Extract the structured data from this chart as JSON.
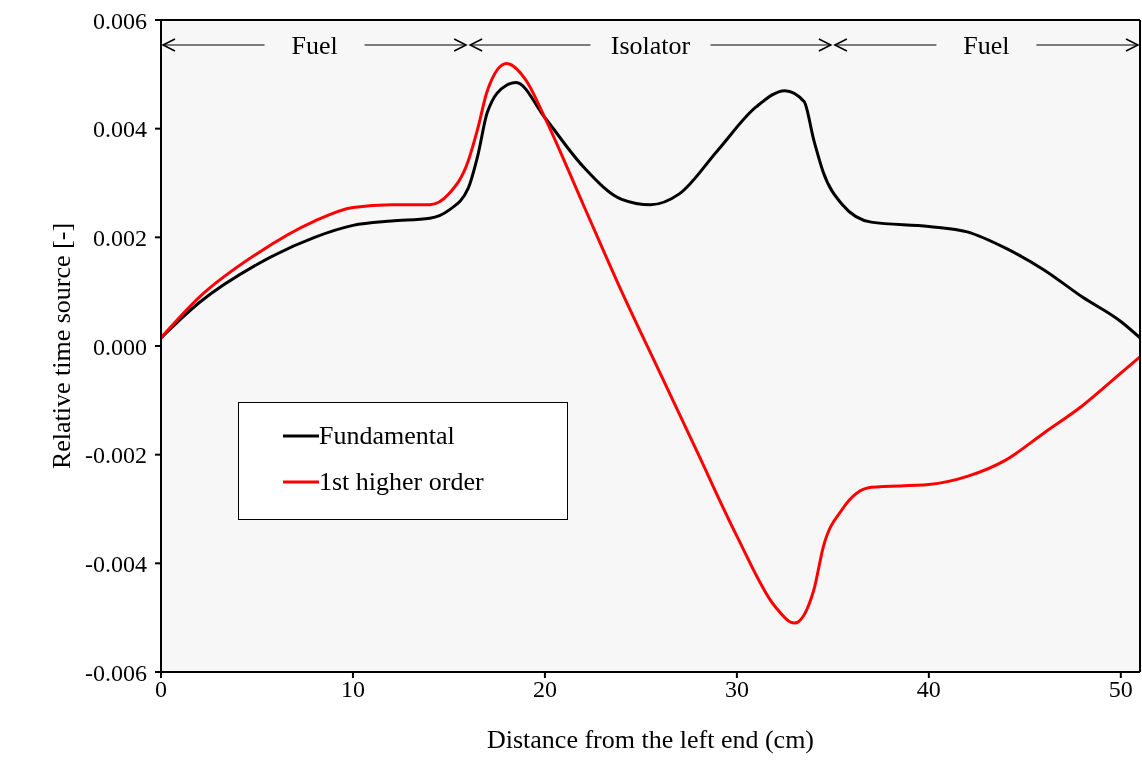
{
  "chart_data": {
    "type": "line",
    "xlabel": "Distance from the left end (cm)",
    "ylabel": "Relative time source [-]",
    "xlim": [
      0,
      51
    ],
    "xticks": [
      0,
      10,
      20,
      30,
      40,
      50
    ],
    "ylim": [
      -0.006,
      0.006
    ],
    "yticks": [
      -0.006,
      -0.004,
      -0.002,
      {
        "value": 0,
        "label": "0.000"
      },
      0.002,
      0.004,
      0.006
    ],
    "grid": false,
    "legend": "left",
    "marker": "none",
    "line_style": "solid",
    "bands": [
      {
        "axis": "x",
        "from": 0,
        "to": 16,
        "label": "Fuel",
        "color": "#f7f7f7"
      },
      {
        "axis": "x",
        "from": 16,
        "to": 35,
        "label": "Isolator",
        "color": "#f7f7f7"
      },
      {
        "axis": "x",
        "from": 35,
        "to": 51,
        "label": "Fuel",
        "color": "#f7f7f7"
      }
    ],
    "series": [
      {
        "name": "Fundamental",
        "color": "#000000",
        "x": [
          0,
          2,
          5,
          8,
          10,
          12,
          14,
          15,
          16,
          16.5,
          17,
          18,
          18.5,
          20,
          22,
          24,
          25.5,
          27,
          29,
          31,
          32.5,
          33.5,
          34,
          34.5,
          35.5,
          37,
          40,
          42,
          44,
          46,
          48,
          50,
          51
        ],
        "values": [
          0.00015,
          0.0008,
          0.0015,
          0.002,
          0.00222,
          0.0023,
          0.00235,
          0.0025,
          0.0029,
          0.0035,
          0.0043,
          0.0048,
          0.00485,
          0.0042,
          0.0033,
          0.0027,
          0.0026,
          0.0028,
          0.0036,
          0.0044,
          0.0047,
          0.0045,
          0.0038,
          0.0032,
          0.0026,
          0.00228,
          0.0022,
          0.0021,
          0.0018,
          0.0014,
          0.0009,
          0.00045,
          0.00015
        ]
      },
      {
        "name": "1st higher order",
        "color": "#ff0000",
        "x": [
          0,
          2,
          5,
          8,
          10,
          12,
          14,
          15,
          16,
          16.5,
          17,
          18,
          19,
          20,
          22,
          24,
          26,
          28,
          30,
          32,
          33,
          34,
          34.5,
          35.5,
          37,
          40,
          42,
          44,
          46,
          48,
          50,
          51
        ],
        "values": [
          0.00015,
          0.0009,
          0.0017,
          0.0023,
          0.00255,
          0.0026,
          0.0026,
          0.0028,
          0.0034,
          0.004,
          0.0047,
          0.0052,
          0.0049,
          0.0042,
          0.0026,
          0.001,
          -0.0005,
          -0.002,
          -0.0035,
          -0.0048,
          -0.0051,
          -0.0045,
          -0.0037,
          -0.003,
          -0.0026,
          -0.00255,
          -0.0024,
          -0.0021,
          -0.0016,
          -0.0011,
          -0.0005,
          -0.0002
        ]
      }
    ]
  }
}
